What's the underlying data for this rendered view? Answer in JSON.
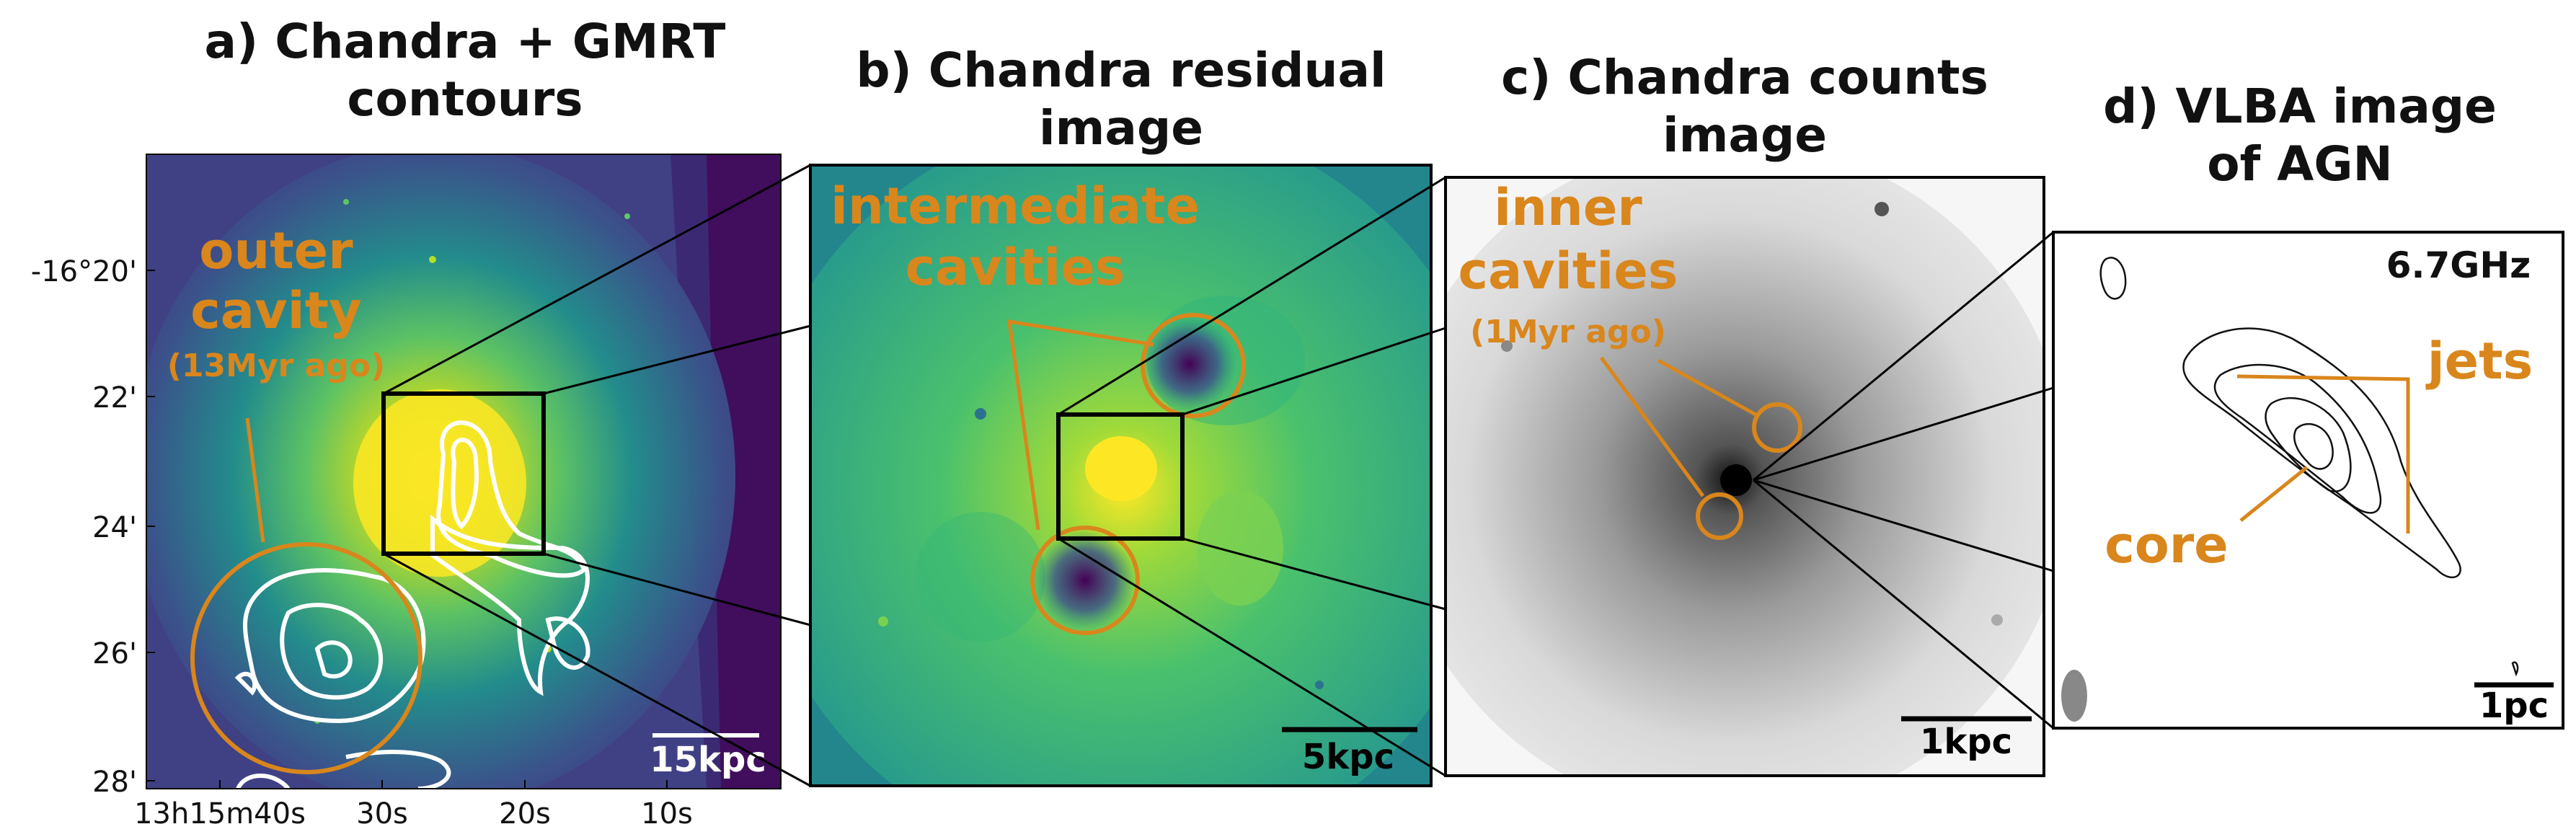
{
  "panels": {
    "a": {
      "title_line1": "a) Chandra + GMRT",
      "title_line2": "contours",
      "label_line1": "outer",
      "label_line2": "cavity",
      "label_line3": "(13Myr ago)",
      "scale_bar": "15kpc",
      "dec_ticks": [
        "-16°20'",
        "22'",
        "24'",
        "26'",
        "28'"
      ],
      "ra_ticks": [
        "13h15m40s",
        "30s",
        "20s",
        "10s"
      ]
    },
    "b": {
      "title_line1": "b) Chandra residual",
      "title_line2": "image",
      "label_line1": "intermediate",
      "label_line2": "cavities",
      "scale_bar": "5kpc"
    },
    "c": {
      "title_line1": "c) Chandra counts",
      "title_line2": "image",
      "label_line1": "inner",
      "label_line2": "cavities",
      "label_line3": "(1Myr ago)",
      "scale_bar": "1kpc"
    },
    "d": {
      "title_line1": "d) VLBA image",
      "title_line2": "of AGN",
      "frequency": "6.7GHz",
      "label_jets": "jets",
      "label_core": "core",
      "scale_bar": "1pc"
    }
  },
  "colors": {
    "annotation": "#d9861c",
    "viridis_dark": "#440154",
    "viridis_mid": "#21908c",
    "viridis_light": "#fde725"
  }
}
